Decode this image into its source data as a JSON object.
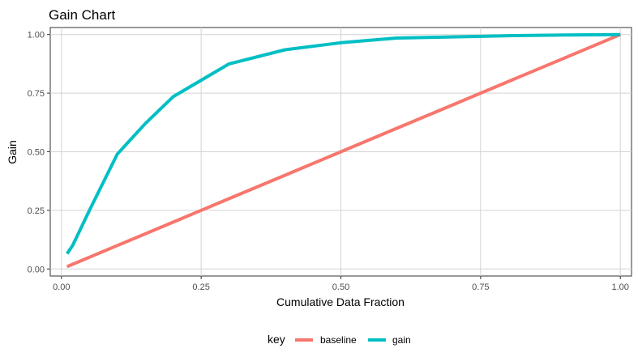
{
  "chart_data": {
    "type": "line",
    "title": "Gain Chart",
    "xlabel": "Cumulative Data Fraction",
    "ylabel": "Gain",
    "xlim": [
      -0.02,
      1.02
    ],
    "ylim": [
      -0.03,
      1.03
    ],
    "xticks": [
      0.0,
      0.25,
      0.5,
      0.75,
      1.0
    ],
    "xtick_labels": [
      "0.00",
      "0.25",
      "0.50",
      "0.75",
      "1.00"
    ],
    "yticks": [
      0.0,
      0.25,
      0.5,
      0.75,
      1.0
    ],
    "ytick_labels": [
      "0.00",
      "0.25",
      "0.50",
      "0.75",
      "1.00"
    ],
    "grid": true,
    "legend": {
      "title": "key",
      "position": "bottom"
    },
    "series": [
      {
        "name": "baseline",
        "color": "#f8766d",
        "x": [
          0.01,
          0.02,
          0.03,
          0.04,
          0.05,
          0.1,
          0.15,
          0.2,
          0.3,
          0.4,
          0.5,
          0.6,
          0.7,
          0.8,
          0.9,
          1.0
        ],
        "y": [
          0.01,
          0.02,
          0.03,
          0.04,
          0.05,
          0.1,
          0.15,
          0.2,
          0.3,
          0.4,
          0.5,
          0.6,
          0.7,
          0.8,
          0.9,
          1.0
        ]
      },
      {
        "name": "gain",
        "color": "#00bfc4",
        "x": [
          0.01,
          0.02,
          0.03,
          0.04,
          0.05,
          0.1,
          0.15,
          0.2,
          0.3,
          0.4,
          0.5,
          0.6,
          0.7,
          0.8,
          0.9,
          1.0
        ],
        "y": [
          0.065,
          0.1,
          0.15,
          0.2,
          0.25,
          0.49,
          0.62,
          0.735,
          0.875,
          0.935,
          0.965,
          0.985,
          0.99,
          0.995,
          0.998,
          1.0
        ]
      }
    ]
  }
}
